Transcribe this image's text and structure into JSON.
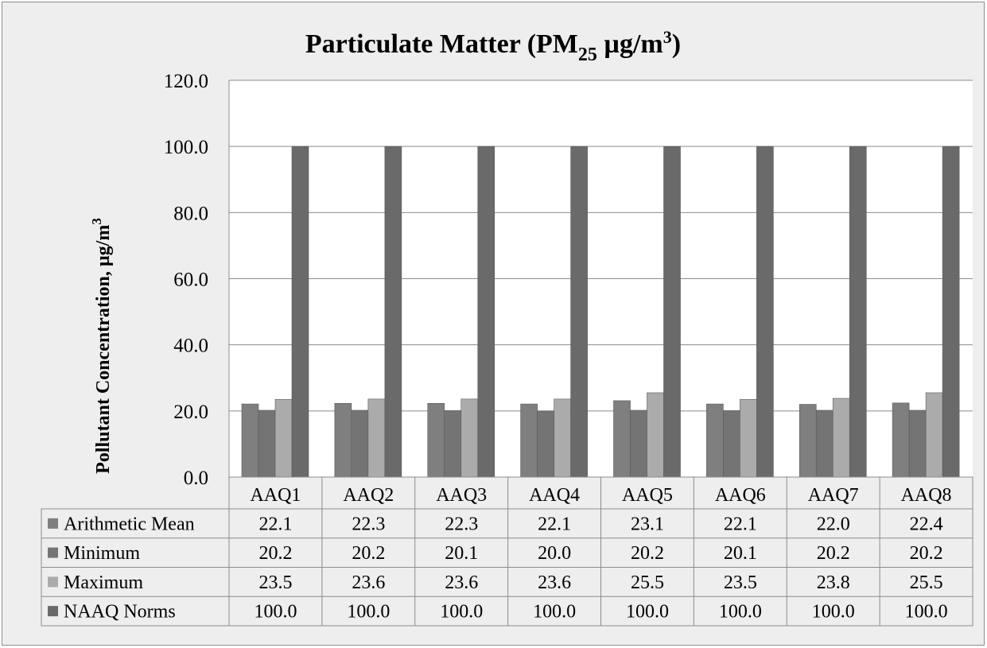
{
  "chart_data": {
    "type": "bar",
    "title_main": "Particulate Matter (PM",
    "title_sub": "25",
    "title_unit": " µg/m",
    "title_sup": "3",
    "title_end": ")",
    "ylabel": "Pollutant Concentration, µg/m",
    "ylabel_sup": "3",
    "ylim": [
      0,
      120
    ],
    "yticks": [
      "0.0",
      "20.0",
      "40.0",
      "60.0",
      "80.0",
      "100.0",
      "120.0"
    ],
    "categories": [
      "AAQ1",
      "AAQ2",
      "AAQ3",
      "AAQ4",
      "AAQ5",
      "AAQ6",
      "AAQ7",
      "AAQ8"
    ],
    "series": [
      {
        "name": "Arithmetic Mean",
        "color": "#7f7f7f",
        "values": [
          22.1,
          22.3,
          22.3,
          22.1,
          23.1,
          22.1,
          22.0,
          22.4
        ]
      },
      {
        "name": "Minimum",
        "color": "#747474",
        "values": [
          20.2,
          20.2,
          20.1,
          20.0,
          20.2,
          20.1,
          20.2,
          20.2
        ]
      },
      {
        "name": "Maximum",
        "color": "#ababab",
        "values": [
          23.5,
          23.6,
          23.6,
          23.6,
          25.5,
          23.5,
          23.8,
          25.5
        ]
      },
      {
        "name": "NAAQ Norms",
        "color": "#6a6a6a",
        "values": [
          100.0,
          100.0,
          100.0,
          100.0,
          100.0,
          100.0,
          100.0,
          100.0
        ]
      }
    ],
    "grid": true,
    "legend": "data-table"
  }
}
